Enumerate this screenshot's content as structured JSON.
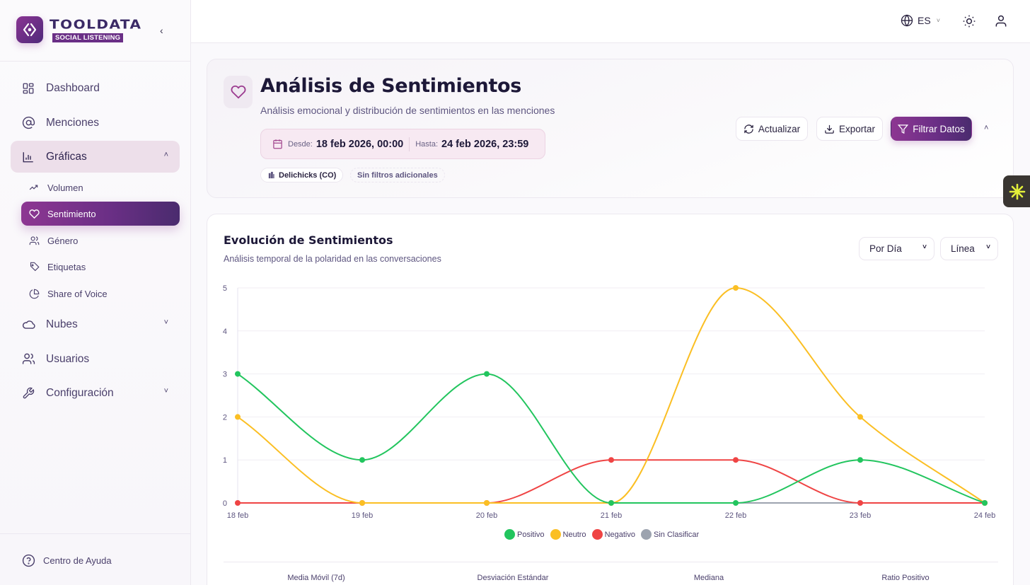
{
  "brand": {
    "name": "TOOLDATA",
    "tagline": "SOCIAL LISTENING"
  },
  "sidebar": {
    "items": [
      {
        "label": "Dashboard",
        "icon": "grid-icon"
      },
      {
        "label": "Menciones",
        "icon": "at-sign-icon"
      },
      {
        "label": "Gráficas",
        "icon": "bar-chart-icon",
        "expanded": true
      },
      {
        "label": "Nubes",
        "icon": "cloud-icon"
      },
      {
        "label": "Usuarios",
        "icon": "users-icon"
      },
      {
        "label": "Configuración",
        "icon": "wrench-icon"
      }
    ],
    "subitems": [
      {
        "label": "Volumen",
        "icon": "trending-up-icon"
      },
      {
        "label": "Sentimiento",
        "icon": "heart-icon",
        "active": true
      },
      {
        "label": "Género",
        "icon": "users-icon"
      },
      {
        "label": "Etiquetas",
        "icon": "tag-icon"
      },
      {
        "label": "Share of Voice",
        "icon": "pie-chart-icon"
      }
    ],
    "help": "Centro de Ayuda"
  },
  "topbar": {
    "language": "ES"
  },
  "header": {
    "title": "Análisis de Sentimientos",
    "subtitle": "Análisis emocional y distribución de sentimientos en las menciones",
    "date_from_label": "Desde:",
    "date_from": "18 feb 2026, 00:00",
    "date_to_label": "Hasta:",
    "date_to": "24 feb 2026, 23:59",
    "chips": [
      "Delichicks (CO)",
      "Sin filtros adicionales"
    ],
    "buttons": {
      "refresh": "Actualizar",
      "export": "Exportar",
      "filter": "Filtrar Datos"
    }
  },
  "chart_card": {
    "title": "Evolución de Sentimientos",
    "subtitle": "Análisis temporal de la polaridad en las conversaciones",
    "period_select": "Por Día",
    "type_select": "Línea",
    "stats": [
      "Media Móvil (7d)",
      "Desviación Estándar",
      "Mediana",
      "Ratio Positivo"
    ]
  },
  "chart_data": {
    "type": "line",
    "title": "Evolución de Sentimientos",
    "xlabel": "",
    "ylabel": "",
    "categories": [
      "18 feb",
      "19 feb",
      "20 feb",
      "21 feb",
      "22 feb",
      "23 feb",
      "24 feb"
    ],
    "ylim": [
      0,
      5
    ],
    "yticks": [
      0,
      1,
      2,
      3,
      4,
      5
    ],
    "grid": true,
    "legend_position": "bottom",
    "series": [
      {
        "name": "Positivo",
        "color": "#22c55e",
        "values": [
          3,
          1,
          3,
          0,
          0,
          1,
          0
        ]
      },
      {
        "name": "Neutro",
        "color": "#fbbf24",
        "values": [
          2,
          0,
          0,
          0,
          5,
          2,
          0
        ]
      },
      {
        "name": "Negativo",
        "color": "#ef4444",
        "values": [
          0,
          0,
          0,
          1,
          1,
          0,
          0
        ]
      },
      {
        "name": "Sin Clasificar",
        "color": "#9ca3af",
        "values": [
          0,
          0,
          0,
          0,
          0,
          0,
          0
        ]
      }
    ]
  }
}
